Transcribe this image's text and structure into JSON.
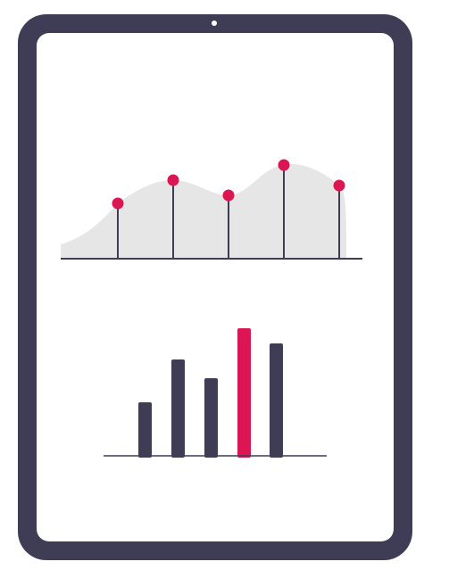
{
  "colors": {
    "frame": "#3f3d56",
    "screen": "#ffffff",
    "accent": "#dc1553",
    "area_fill": "#e6e6e6",
    "axis": "#3f3d56",
    "camera": "#ffffff"
  },
  "icons": {
    "device": "tablet-icon",
    "camera": "camera-dot-icon"
  },
  "chart_data": [
    {
      "type": "area",
      "markers": "lollipop",
      "x": [
        1,
        2,
        3,
        4,
        5
      ],
      "values": [
        62,
        88,
        71,
        105,
        82
      ],
      "ylim": [
        0,
        130
      ],
      "grid": false
    },
    {
      "type": "bar",
      "values": [
        60,
        108,
        87,
        143,
        126
      ],
      "highlight_index": 3,
      "ylim": [
        0,
        150
      ],
      "grid": false
    }
  ]
}
